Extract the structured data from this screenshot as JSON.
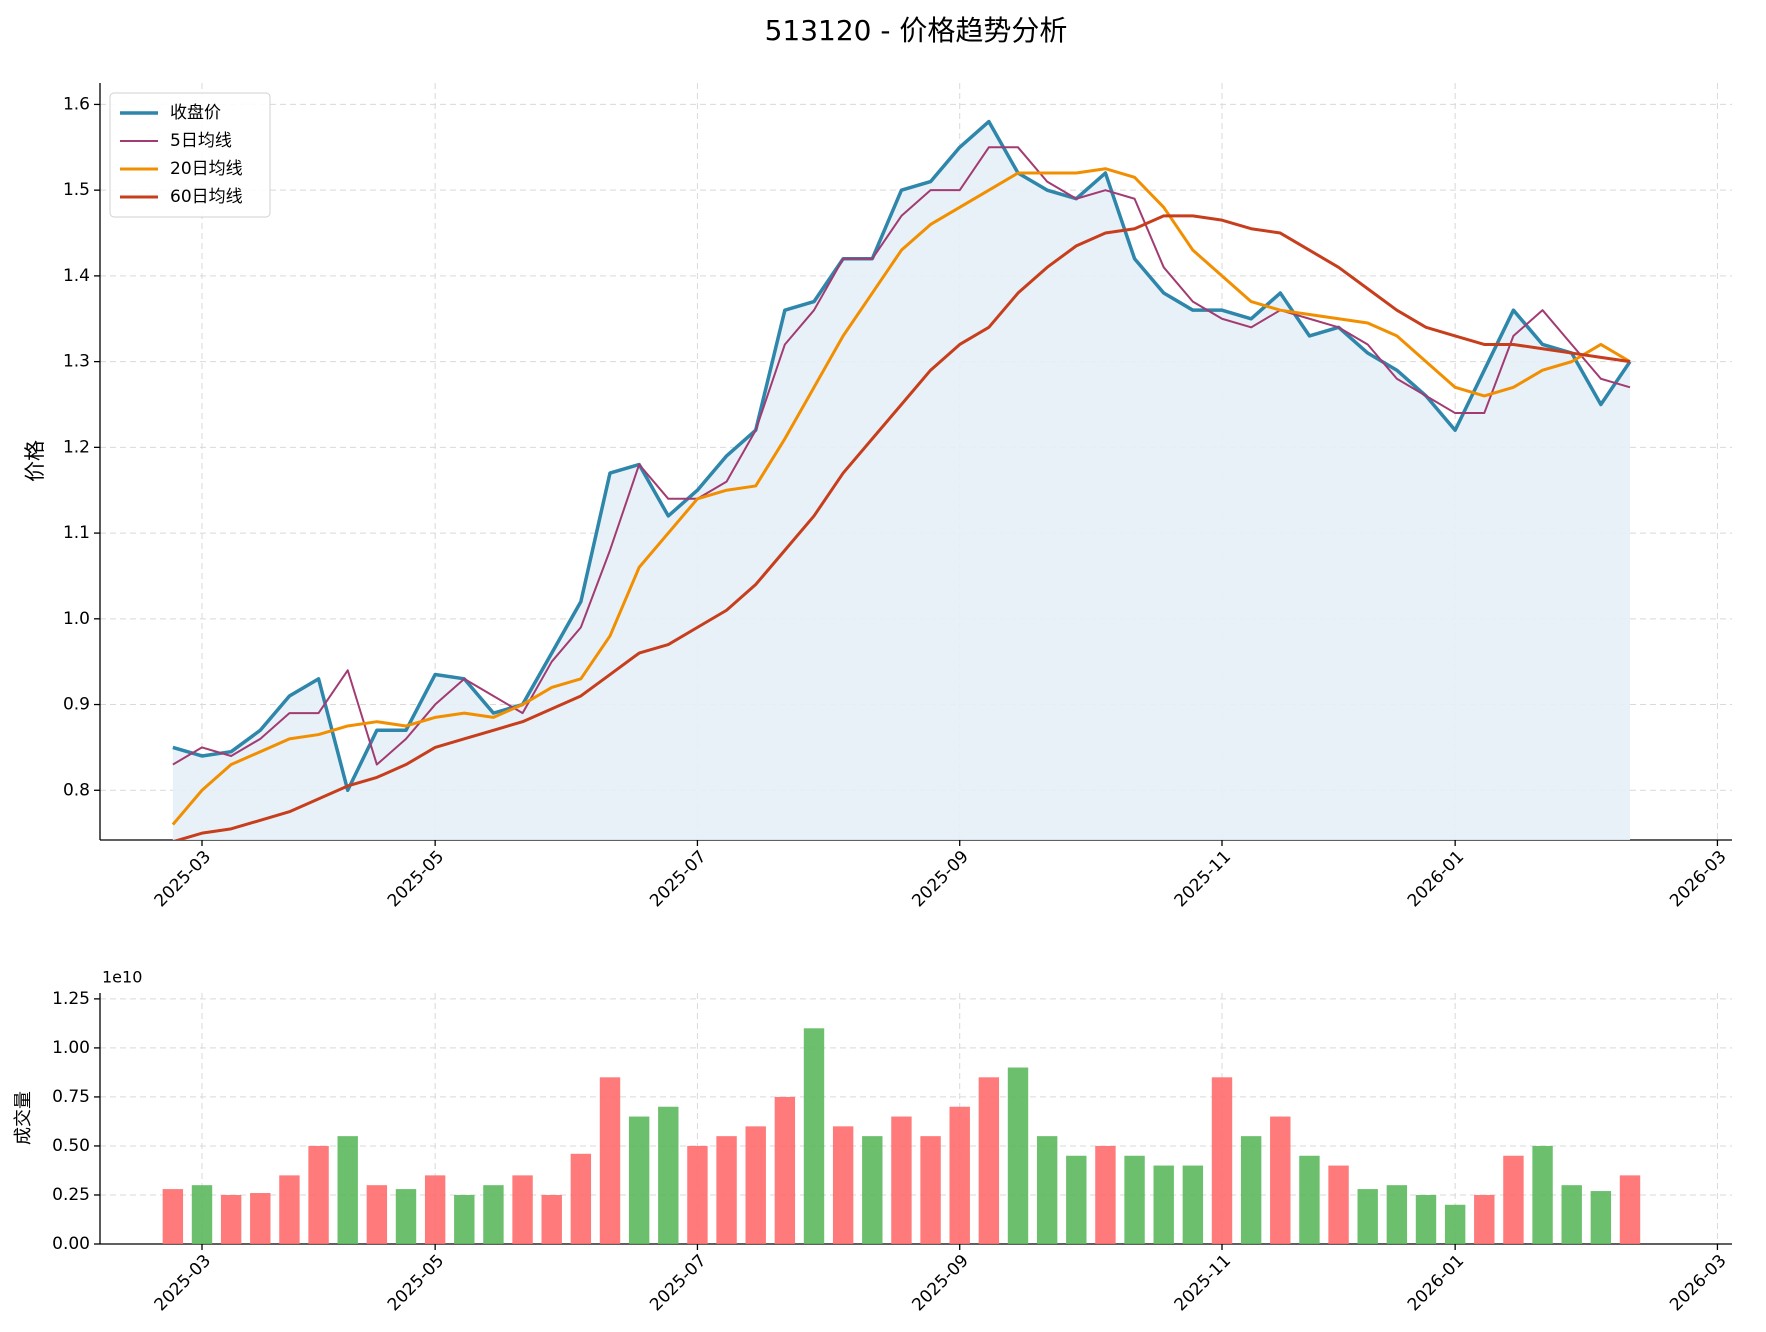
{
  "chart_data": [
    {
      "type": "line",
      "title": "513120 - 价格趋势分析",
      "ylabel": "价格",
      "categories": [
        null,
        null,
        null,
        "2025-03",
        null,
        null,
        null,
        null,
        null,
        null,
        null,
        "2025-05",
        null,
        null,
        null,
        null,
        null,
        null,
        null,
        null,
        "2025-07",
        null,
        null,
        null,
        null,
        null,
        null,
        null,
        null,
        "2025-09",
        null,
        null,
        null,
        null,
        null,
        null,
        null,
        null,
        "2025-11",
        null,
        null,
        null,
        null,
        null,
        null,
        null,
        "2026-01",
        null,
        null,
        null,
        null,
        null,
        null,
        null,
        null,
        "2026-03"
      ],
      "ylim": [
        0.742,
        1.625
      ],
      "yticks": [
        0.8,
        0.9,
        {
          "value": 1,
          "label": "1.0"
        },
        1.1,
        1.2,
        1.3,
        1.4,
        1.5,
        1.6
      ],
      "grid": true,
      "legend": "upper left",
      "series": [
        {
          "name": "收盘价",
          "color": "#2e86ab",
          "width": 3.5,
          "fill": "#e6f0f6",
          "values": [
            null,
            null,
            0.85,
            0.84,
            0.845,
            0.87,
            0.91,
            0.93,
            0.8,
            0.87,
            0.87,
            0.935,
            0.93,
            0.89,
            0.9,
            0.96,
            1.02,
            1.17,
            1.18,
            1.12,
            1.15,
            1.19,
            1.22,
            1.36,
            1.37,
            1.42,
            1.42,
            1.5,
            1.51,
            1.55,
            1.58,
            1.52,
            1.5,
            1.49,
            1.52,
            1.42,
            1.38,
            1.36,
            1.36,
            1.35,
            1.38,
            1.33,
            1.34,
            1.31,
            1.29,
            1.26,
            1.22,
            1.29,
            1.36,
            1.32,
            1.31,
            1.25,
            1.3,
            null,
            null,
            null
          ]
        },
        {
          "name": "5日均线",
          "color": "#a23b72",
          "width": 2,
          "values": [
            null,
            null,
            0.83,
            0.85,
            0.84,
            0.86,
            0.89,
            0.89,
            0.94,
            0.83,
            0.86,
            0.9,
            0.93,
            0.91,
            0.89,
            0.95,
            0.99,
            1.08,
            1.18,
            1.14,
            1.14,
            1.16,
            1.22,
            1.32,
            1.36,
            1.42,
            1.42,
            1.47,
            1.5,
            1.5,
            1.55,
            1.55,
            1.51,
            1.49,
            1.5,
            1.49,
            1.41,
            1.37,
            1.35,
            1.34,
            1.36,
            1.35,
            1.34,
            1.32,
            1.28,
            1.26,
            1.24,
            1.24,
            1.33,
            1.36,
            1.32,
            1.28,
            1.27,
            null,
            null,
            null
          ]
        },
        {
          "name": "20日均线",
          "color": "#f18f01",
          "width": 3,
          "values": [
            null,
            null,
            0.76,
            0.8,
            0.83,
            0.845,
            0.86,
            0.865,
            0.875,
            0.88,
            0.875,
            0.885,
            0.89,
            0.885,
            0.9,
            0.92,
            0.93,
            0.98,
            1.06,
            1.1,
            1.14,
            1.15,
            1.155,
            1.21,
            1.27,
            1.33,
            1.38,
            1.43,
            1.46,
            1.48,
            1.5,
            1.52,
            1.52,
            1.52,
            1.525,
            1.515,
            1.48,
            1.43,
            1.4,
            1.37,
            1.36,
            1.355,
            1.35,
            1.345,
            1.33,
            1.3,
            1.27,
            1.26,
            1.27,
            1.29,
            1.3,
            1.32,
            1.3,
            null,
            null,
            null
          ]
        },
        {
          "name": "60日均线",
          "color": "#c73e1d",
          "width": 3,
          "values": [
            null,
            null,
            0.74,
            0.75,
            0.755,
            0.765,
            0.775,
            0.79,
            0.805,
            0.815,
            0.83,
            0.85,
            0.86,
            0.87,
            0.88,
            0.895,
            0.91,
            0.935,
            0.96,
            0.97,
            0.99,
            1.01,
            1.04,
            1.08,
            1.12,
            1.17,
            1.21,
            1.25,
            1.29,
            1.32,
            1.34,
            1.38,
            1.41,
            1.435,
            1.45,
            1.455,
            1.47,
            1.47,
            1.465,
            1.455,
            1.45,
            1.43,
            1.41,
            1.385,
            1.36,
            1.34,
            1.33,
            1.32,
            1.32,
            1.315,
            1.31,
            1.305,
            1.3,
            null,
            null,
            null
          ]
        }
      ]
    },
    {
      "type": "bar",
      "ylabel": "成交量",
      "offset_label": "1e10",
      "categories": [
        null,
        null,
        null,
        "2025-03",
        null,
        null,
        null,
        null,
        null,
        null,
        null,
        "2025-05",
        null,
        null,
        null,
        null,
        null,
        null,
        null,
        null,
        "2025-07",
        null,
        null,
        null,
        null,
        null,
        null,
        null,
        null,
        "2025-09",
        null,
        null,
        null,
        null,
        null,
        null,
        null,
        null,
        "2025-11",
        null,
        null,
        null,
        null,
        null,
        null,
        null,
        "2026-01",
        null,
        null,
        null,
        null,
        null,
        null,
        null,
        null,
        "2026-03"
      ],
      "ylim": [
        0,
        12800000000
      ],
      "yticks": [
        {
          "value": 0,
          "label": "0.00"
        },
        {
          "value": 2500000000,
          "label": "0.25"
        },
        {
          "value": 5000000000,
          "label": "0.50"
        },
        {
          "value": 7500000000,
          "label": "0.75"
        },
        {
          "value": 10000000000,
          "label": "1.00"
        },
        {
          "value": 12500000000,
          "label": "1.25"
        }
      ],
      "grid": true,
      "values": [
        null,
        null,
        2800000000,
        3000000000,
        2500000000,
        2600000000,
        3500000000,
        5000000000,
        5500000000,
        3000000000,
        2800000000,
        3500000000,
        2500000000,
        3000000000,
        3500000000,
        2500000000,
        4600000000,
        8500000000,
        6500000000,
        7000000000,
        5000000000,
        5500000000,
        6000000000,
        7500000000,
        11000000000,
        6000000000,
        5500000000,
        6500000000,
        5500000000,
        7000000000,
        8500000000,
        9000000000,
        5500000000,
        4500000000,
        5000000000,
        4500000000,
        4000000000,
        4000000000,
        8500000000,
        5500000000,
        6500000000,
        4500000000,
        4000000000,
        2800000000,
        3000000000,
        2500000000,
        2000000000,
        2500000000,
        4500000000,
        5000000000,
        3000000000,
        2700000000,
        3500000000,
        null,
        null,
        null
      ],
      "colors": [
        null,
        null,
        "#ff6b6b",
        "#5cb85c",
        "#ff6b6b",
        "#ff6b6b",
        "#ff6b6b",
        "#ff6b6b",
        "#5cb85c",
        "#ff6b6b",
        "#5cb85c",
        "#ff6b6b",
        "#5cb85c",
        "#5cb85c",
        "#ff6b6b",
        "#ff6b6b",
        "#ff6b6b",
        "#ff6b6b",
        "#5cb85c",
        "#5cb85c",
        "#ff6b6b",
        "#ff6b6b",
        "#ff6b6b",
        "#ff6b6b",
        "#5cb85c",
        "#ff6b6b",
        "#5cb85c",
        "#ff6b6b",
        "#ff6b6b",
        "#ff6b6b",
        "#ff6b6b",
        "#5cb85c",
        "#5cb85c",
        "#5cb85c",
        "#ff6b6b",
        "#5cb85c",
        "#5cb85c",
        "#5cb85c",
        "#ff6b6b",
        "#5cb85c",
        "#ff6b6b",
        "#5cb85c",
        "#ff6b6b",
        "#5cb85c",
        "#5cb85c",
        "#5cb85c",
        "#5cb85c",
        "#ff6b6b",
        "#ff6b6b",
        "#5cb85c",
        "#5cb85c",
        "#5cb85c",
        "#ff6b6b",
        null,
        null,
        null
      ]
    }
  ]
}
